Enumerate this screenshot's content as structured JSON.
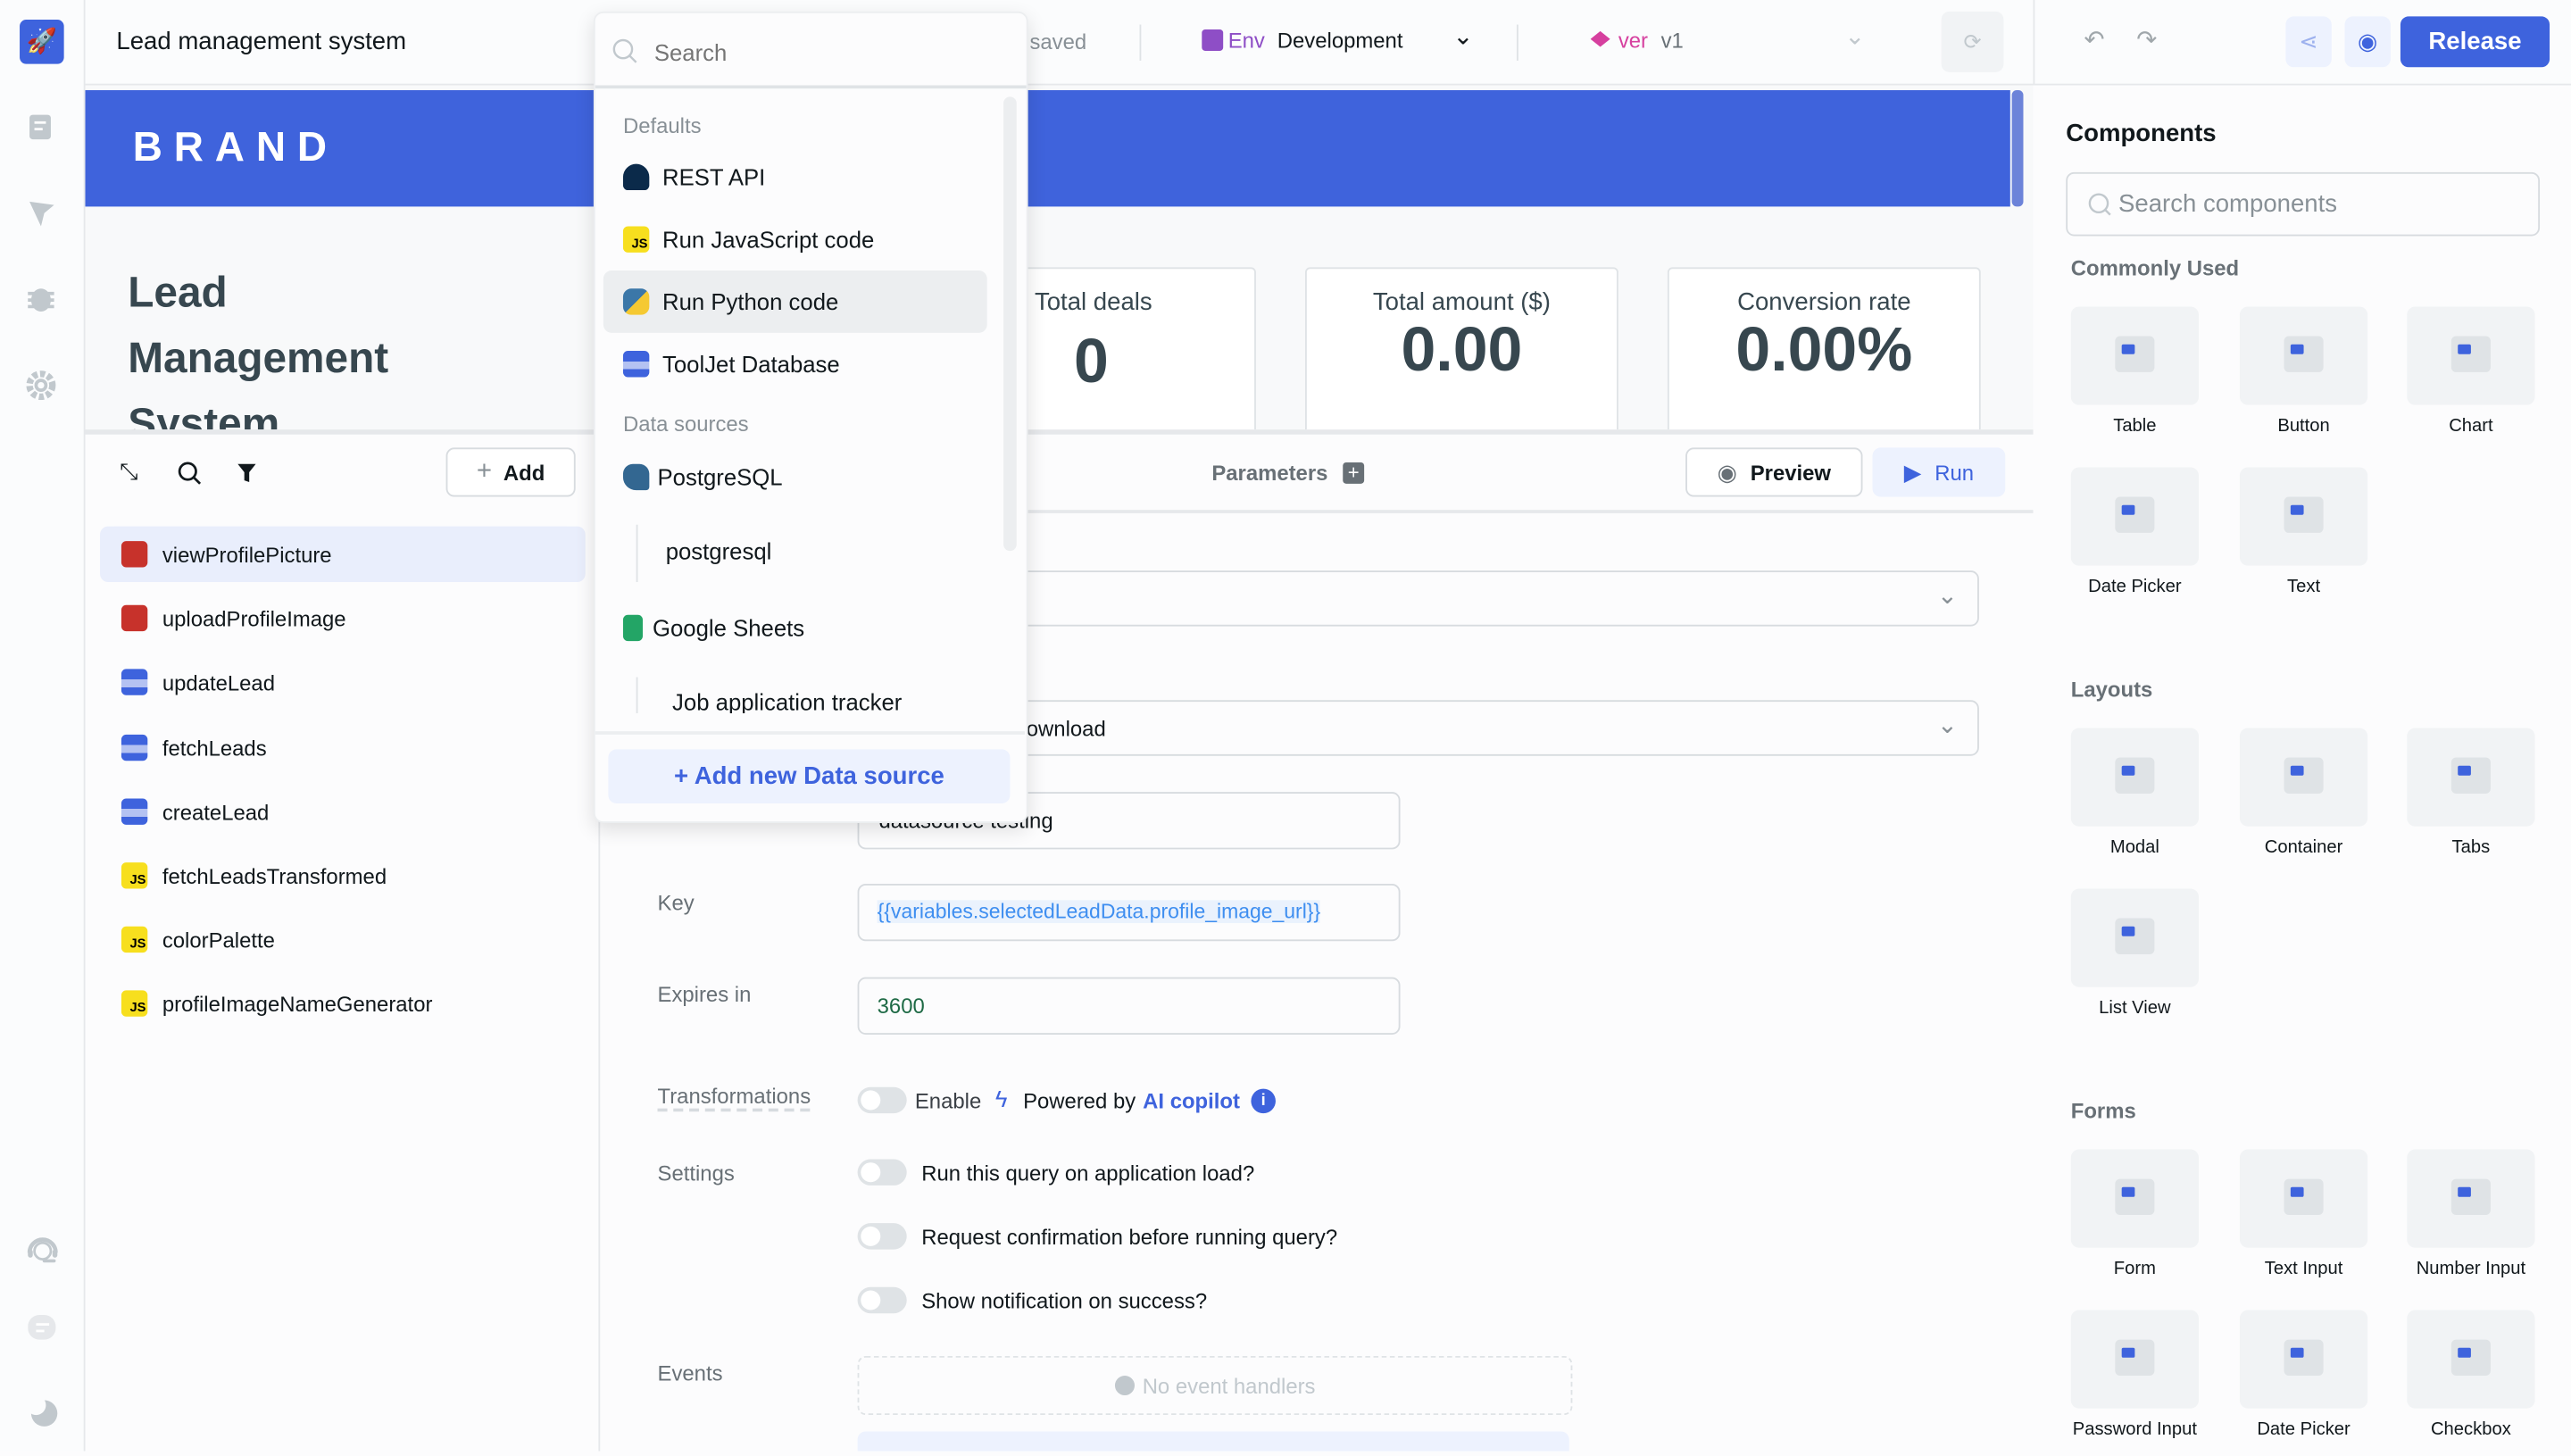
{
  "app": {
    "title": "Lead management system",
    "saved": "saved",
    "env_label": "Env",
    "env_value": "Development",
    "ver_label": "ver",
    "ver_value": "v1",
    "release": "Release",
    "accent": "#3e63dd"
  },
  "rail": {
    "icons": [
      "rocket-logo",
      "pages-icon",
      "comments-icon",
      "debugger-icon",
      "settings-icon",
      "support-icon",
      "chat-icon",
      "dark-mode-icon"
    ]
  },
  "canvas": {
    "brand": "BRAND",
    "heading": [
      "Lead",
      "Management",
      "System"
    ],
    "stats": [
      {
        "label": "Total deals",
        "value": "0"
      },
      {
        "label": "Total amount ($)",
        "value": "0.00"
      },
      {
        "label": "Conversion rate",
        "value": "0.00%"
      }
    ]
  },
  "queries": {
    "add": "Add",
    "items": [
      {
        "name": "viewProfilePicture",
        "type": "s3"
      },
      {
        "name": "uploadProfileImage",
        "type": "s3"
      },
      {
        "name": "updateLead",
        "type": "db"
      },
      {
        "name": "fetchLeads",
        "type": "db"
      },
      {
        "name": "createLead",
        "type": "db"
      },
      {
        "name": "fetchLeadsTransformed",
        "type": "js"
      },
      {
        "name": "colorPalette",
        "type": "js"
      },
      {
        "name": "profileImageNameGenerator",
        "type": "js"
      }
    ]
  },
  "editor": {
    "parameters": "Parameters",
    "preview": "Preview",
    "run": "Run",
    "operation_value": "ownload",
    "bucket_value": "datasource testing",
    "key_label": "Key",
    "key_value": "{{variables.selectedLeadData.profile_image_url}}",
    "expires_label": "Expires in",
    "expires_value": "3600",
    "transformations_label": "Transformations",
    "enable": "Enable",
    "powered_by": "Powered by",
    "ai_copilot": "AI copilot",
    "settings_label": "Settings",
    "settings": [
      "Run this query on application load?",
      "Request confirmation before running query?",
      "Show notification on success?"
    ],
    "events_label": "Events",
    "no_events": "No event handlers"
  },
  "dropdown": {
    "search_placeholder": "Search",
    "defaults_heading": "Defaults",
    "defaults": [
      "REST API",
      "Run JavaScript code",
      "Run Python code",
      "ToolJet Database"
    ],
    "selected": "Run Python code",
    "datasources_heading": "Data sources",
    "datasources": [
      {
        "name": "PostgreSQL",
        "child": "postgresql"
      },
      {
        "name": "Google Sheets",
        "child": "Job application tracker"
      }
    ],
    "add_button": "+ Add new Data source"
  },
  "components": {
    "title": "Components",
    "search_placeholder": "Search components",
    "sections": [
      {
        "title": "Commonly Used",
        "items": [
          "Table",
          "Button",
          "Chart",
          "Date Picker",
          "Text"
        ]
      },
      {
        "title": "Layouts",
        "items": [
          "Modal",
          "Container",
          "Tabs",
          "List View"
        ]
      },
      {
        "title": "Forms",
        "items": [
          "Form",
          "Text Input",
          "Number Input",
          "Password Input",
          "Date Picker",
          "Checkbox"
        ]
      }
    ]
  }
}
